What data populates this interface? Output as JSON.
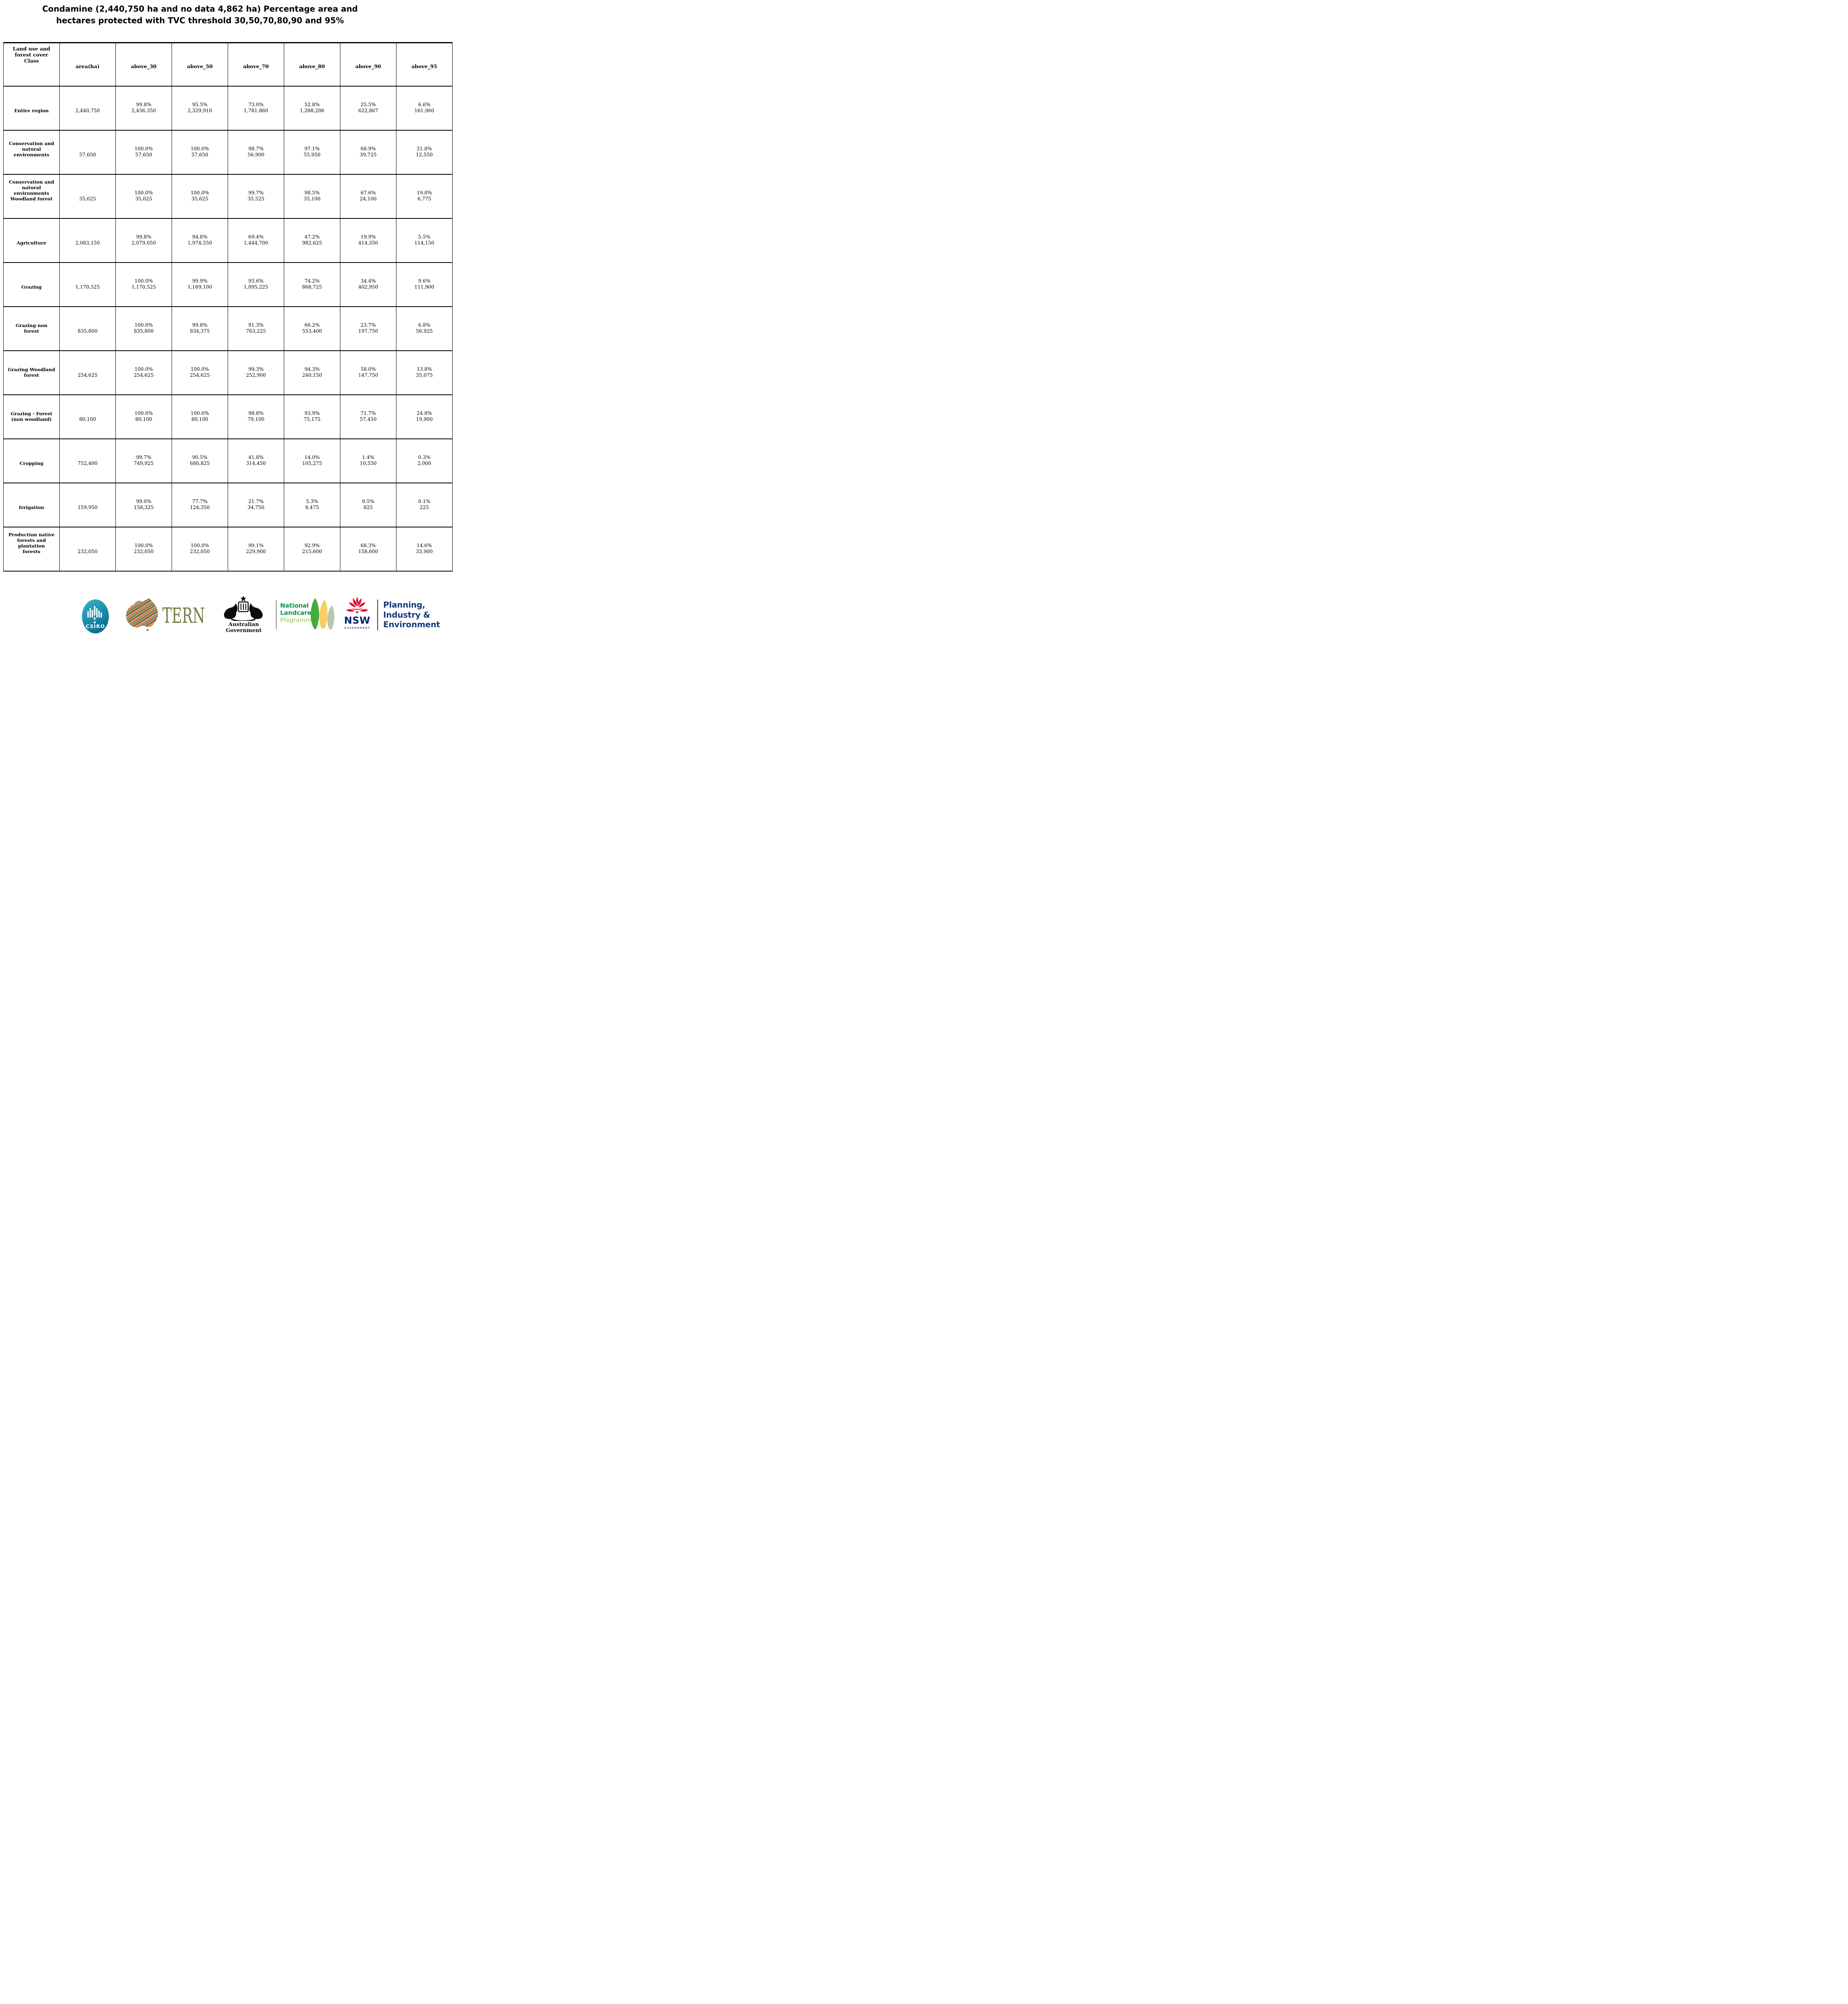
{
  "title": {
    "line1": "Condamine (2,440,750 ha and no data 4,862 ha) Percentage area and",
    "line2": "hectares protected with TVC threshold 30,50,70,80,90 and 95%"
  },
  "table": {
    "columns": [
      "Land use and\nforest cover\nClass",
      "area(ha)",
      "above_30",
      "above_50",
      "above_70",
      "above_80",
      "above_90",
      "above_95"
    ],
    "rows": [
      {
        "label": "Entire region",
        "area": "2,440,750",
        "cells": [
          {
            "pct": "99.8%",
            "ha": "2,436,350"
          },
          {
            "pct": "95.5%",
            "ha": "2,329,910"
          },
          {
            "pct": "73.0%",
            "ha": "1,781,860"
          },
          {
            "pct": "52.8%",
            "ha": "1,288,206"
          },
          {
            "pct": "25.5%",
            "ha": "622,867"
          },
          {
            "pct": "6.6%",
            "ha": "161,960"
          }
        ]
      },
      {
        "label": "Conservation and\nnatural\nenvironments",
        "area": "57,650",
        "cells": [
          {
            "pct": "100.0%",
            "ha": "57,650"
          },
          {
            "pct": "100.0%",
            "ha": "57,650"
          },
          {
            "pct": "98.7%",
            "ha": "56,900"
          },
          {
            "pct": "97.1%",
            "ha": "55,950"
          },
          {
            "pct": "68.9%",
            "ha": "39,725"
          },
          {
            "pct": "21.8%",
            "ha": "12,550"
          }
        ]
      },
      {
        "label": "Conservation and\nnatural\nenvironments\nWoodland forest",
        "area": "35,625",
        "cells": [
          {
            "pct": "100.0%",
            "ha": "35,625"
          },
          {
            "pct": "100.0%",
            "ha": "35,625"
          },
          {
            "pct": "99.7%",
            "ha": "35,525"
          },
          {
            "pct": "98.5%",
            "ha": "35,100"
          },
          {
            "pct": "67.6%",
            "ha": "24,100"
          },
          {
            "pct": "19.0%",
            "ha": "6,775"
          }
        ]
      },
      {
        "label": "Agriculture",
        "area": "2,083,150",
        "cells": [
          {
            "pct": "99.8%",
            "ha": "2,079,050"
          },
          {
            "pct": "94.8%",
            "ha": "1,974,550"
          },
          {
            "pct": "69.4%",
            "ha": "1,444,700"
          },
          {
            "pct": "47.2%",
            "ha": "982,625"
          },
          {
            "pct": "19.9%",
            "ha": "414,350"
          },
          {
            "pct": "5.5%",
            "ha": "114,150"
          }
        ]
      },
      {
        "label": "Grazing",
        "area": "1,170,525",
        "cells": [
          {
            "pct": "100.0%",
            "ha": "1,170,525"
          },
          {
            "pct": "99.9%",
            "ha": "1,169,100"
          },
          {
            "pct": "93.6%",
            "ha": "1,095,225"
          },
          {
            "pct": "74.2%",
            "ha": "868,725"
          },
          {
            "pct": "34.4%",
            "ha": "402,950"
          },
          {
            "pct": "9.6%",
            "ha": "111,900"
          }
        ]
      },
      {
        "label": "Grazing non\nforest",
        "area": "835,800",
        "cells": [
          {
            "pct": "100.0%",
            "ha": "835,800"
          },
          {
            "pct": "99.8%",
            "ha": "834,375"
          },
          {
            "pct": "91.3%",
            "ha": "763,225"
          },
          {
            "pct": "66.2%",
            "ha": "553,400"
          },
          {
            "pct": "23.7%",
            "ha": "197,750"
          },
          {
            "pct": "6.8%",
            "ha": "56,925"
          }
        ]
      },
      {
        "label": "Grazing Woodland\nforest",
        "area": "254,625",
        "cells": [
          {
            "pct": "100.0%",
            "ha": "254,625"
          },
          {
            "pct": "100.0%",
            "ha": "254,625"
          },
          {
            "pct": "99.3%",
            "ha": "252,900"
          },
          {
            "pct": "94.3%",
            "ha": "240,150"
          },
          {
            "pct": "58.0%",
            "ha": "147,750"
          },
          {
            "pct": "13.8%",
            "ha": "35,075"
          }
        ]
      },
      {
        "label": "Grazing - Forest\n(non woodland)",
        "area": "80,100",
        "cells": [
          {
            "pct": "100.0%",
            "ha": "80,100"
          },
          {
            "pct": "100.0%",
            "ha": "80,100"
          },
          {
            "pct": "98.8%",
            "ha": "79,100"
          },
          {
            "pct": "93.9%",
            "ha": "75,175"
          },
          {
            "pct": "71.7%",
            "ha": "57,450"
          },
          {
            "pct": "24.8%",
            "ha": "19,900"
          }
        ]
      },
      {
        "label": "Cropping",
        "area": "752,400",
        "cells": [
          {
            "pct": "99.7%",
            "ha": "749,925"
          },
          {
            "pct": "90.5%",
            "ha": "680,825"
          },
          {
            "pct": "41.8%",
            "ha": "314,450"
          },
          {
            "pct": "14.0%",
            "ha": "105,275"
          },
          {
            "pct": "1.4%",
            "ha": "10,550"
          },
          {
            "pct": "0.3%",
            "ha": "2,000"
          }
        ]
      },
      {
        "label": "Irrigation",
        "area": "159,950",
        "cells": [
          {
            "pct": "99.0%",
            "ha": "158,325"
          },
          {
            "pct": "77.7%",
            "ha": "124,350"
          },
          {
            "pct": "21.7%",
            "ha": "34,750"
          },
          {
            "pct": "5.3%",
            "ha": "8,475"
          },
          {
            "pct": "0.5%",
            "ha": "825"
          },
          {
            "pct": "0.1%",
            "ha": "225"
          }
        ]
      },
      {
        "label": "Production native\nforests and\nplantation\nforests",
        "area": "232,050",
        "cells": [
          {
            "pct": "100.0%",
            "ha": "232,050"
          },
          {
            "pct": "100.0%",
            "ha": "232,050"
          },
          {
            "pct": "99.1%",
            "ha": "229,900"
          },
          {
            "pct": "92.9%",
            "ha": "215,600"
          },
          {
            "pct": "68.3%",
            "ha": "158,600"
          },
          {
            "pct": "14.6%",
            "ha": "33,900"
          }
        ]
      }
    ]
  },
  "footer": {
    "csiro_label": "CSIRO",
    "tern_label": "TERN",
    "ausgov_label": "Australian Government",
    "landcare": {
      "line1": "National",
      "line2": "Landcare",
      "line3": "Programme"
    },
    "nsw": {
      "label": "NSW",
      "sub": "GOVERNMENT"
    },
    "planning": {
      "line1": "Planning,",
      "line2": "Industry &",
      "line3": "Environment"
    },
    "colors": {
      "csiro_teal_light": "#35b7cc",
      "csiro_teal_dark": "#0a6f90",
      "tern_olive": "#6f7d41",
      "landcare_green": "#009645",
      "landcare_light_green": "#8dc63f",
      "nsw_red": "#e4002b",
      "nsw_navy": "#002664",
      "planning_navy": "#15397f"
    }
  }
}
